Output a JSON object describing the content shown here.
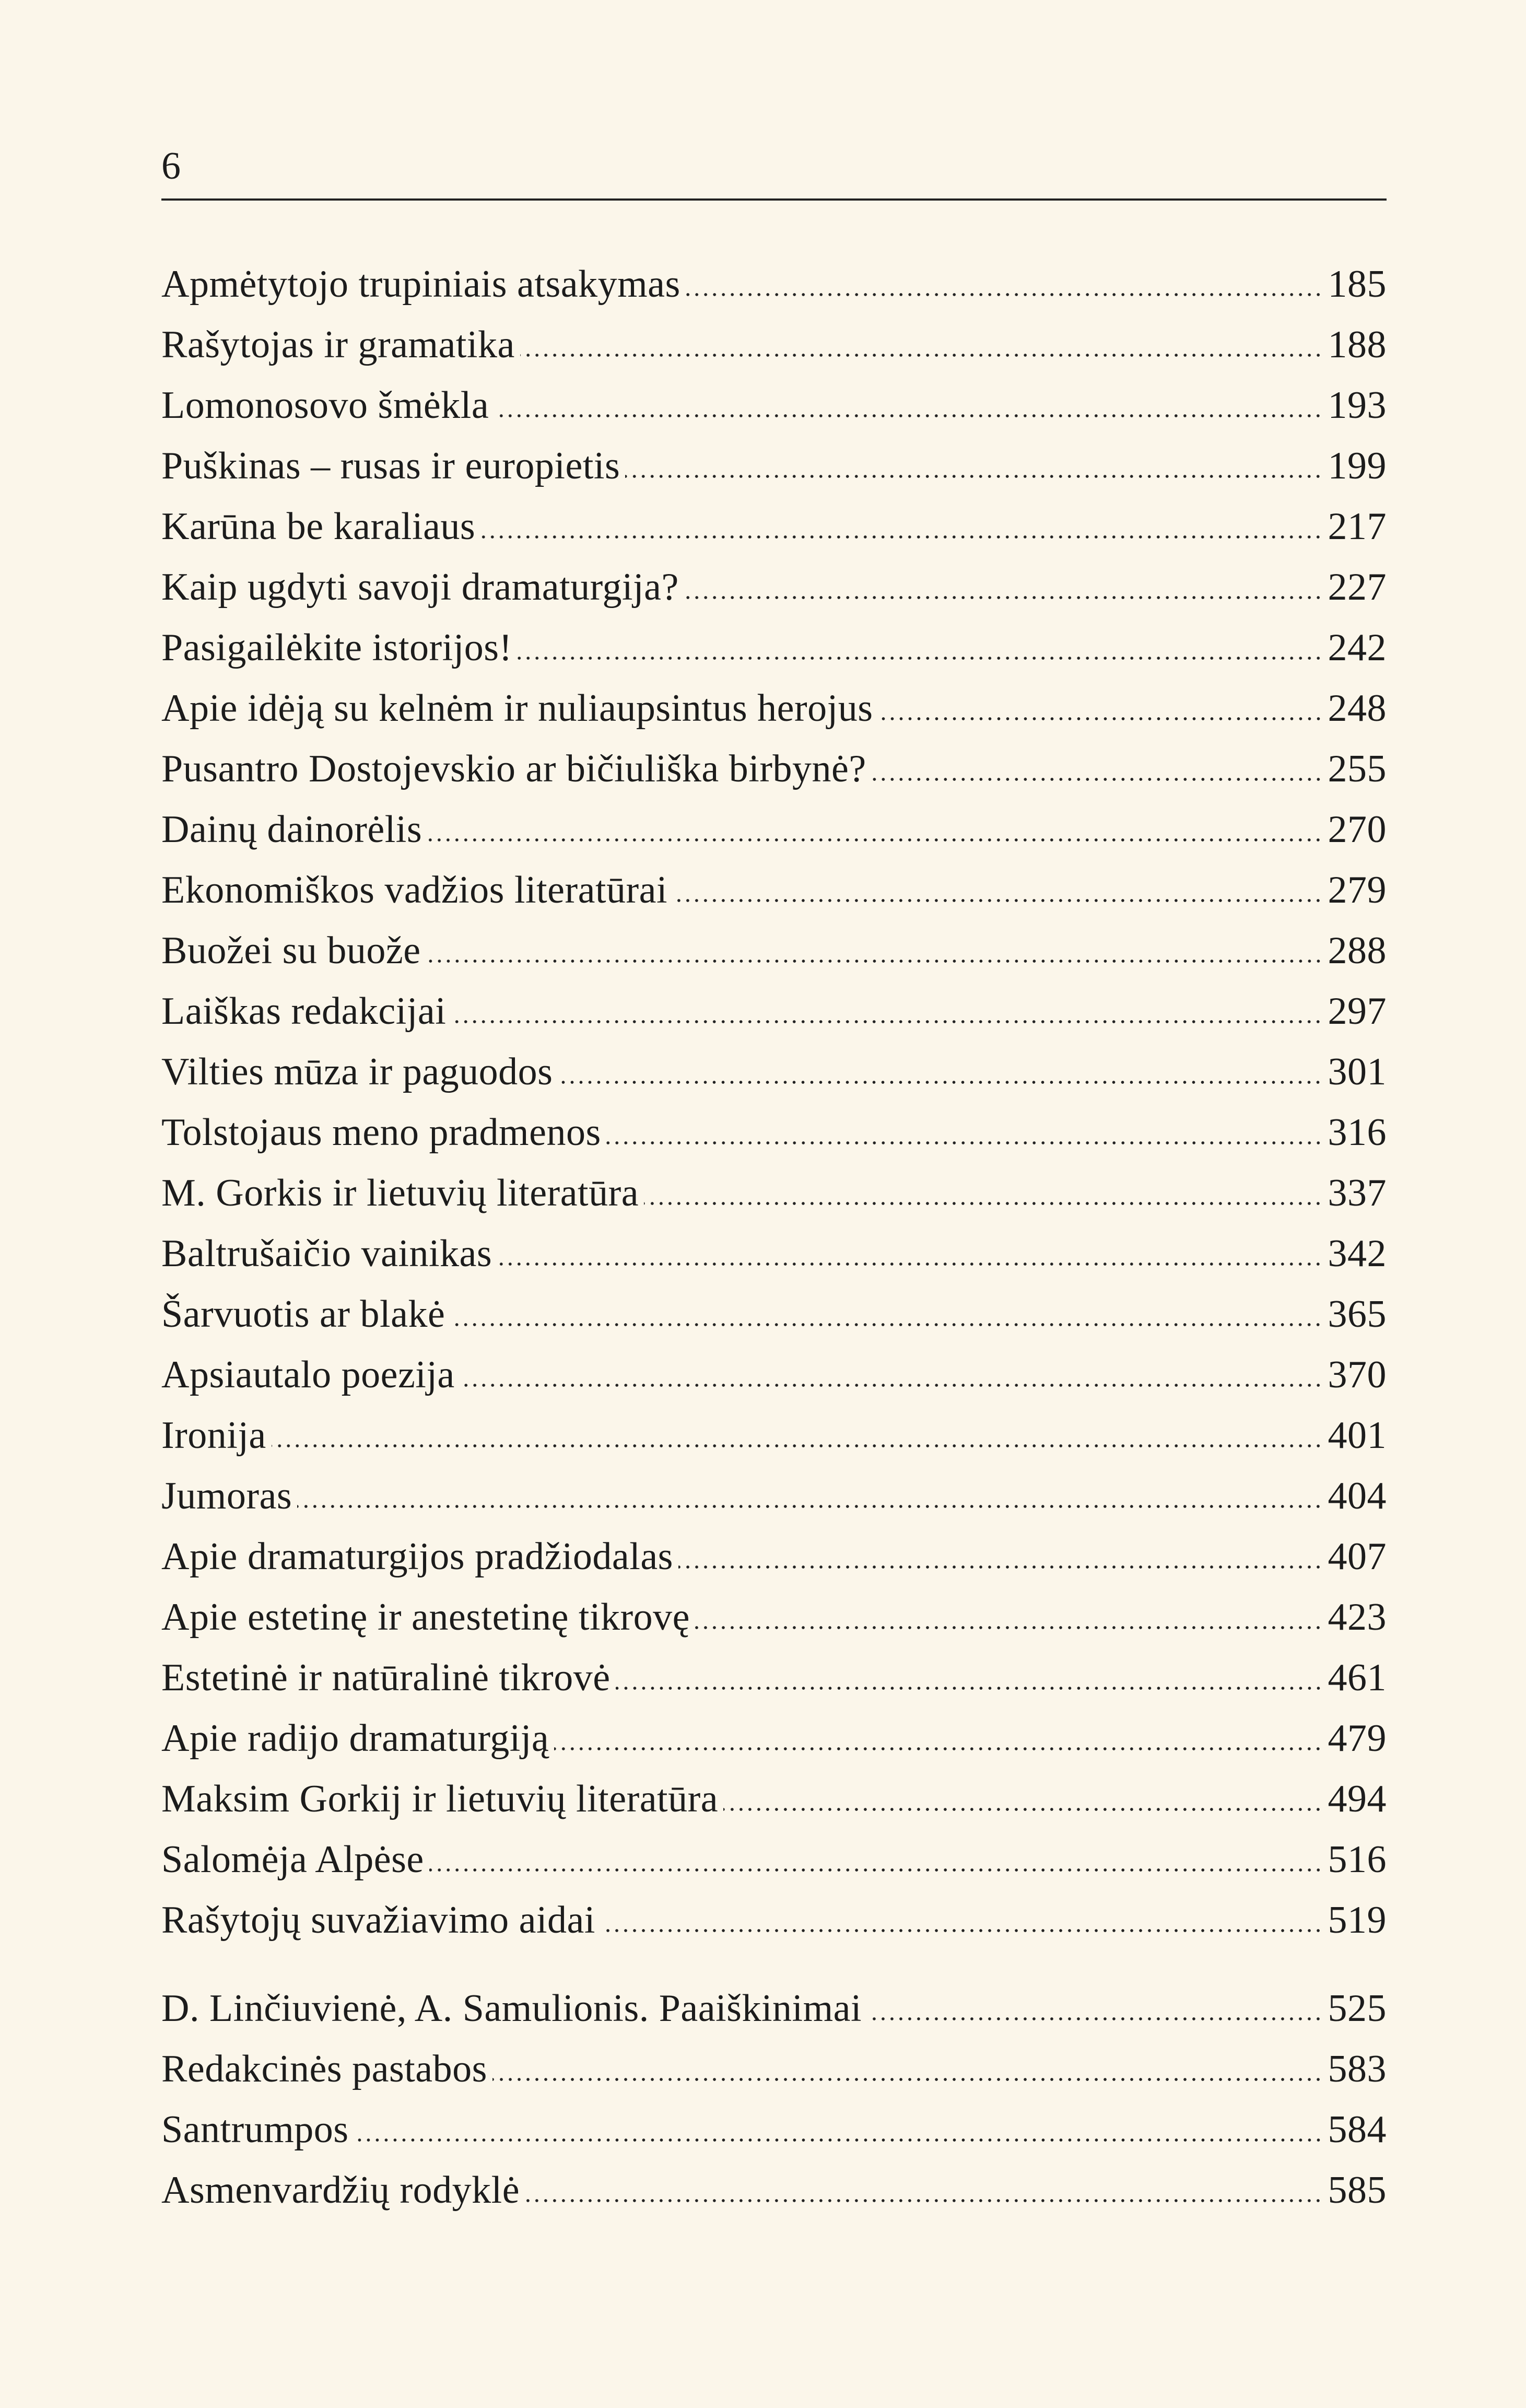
{
  "header": {
    "page_number": "6"
  },
  "toc": {
    "group1": [
      {
        "title": "Apmėtytojo trupiniais atsakymas",
        "page": "185"
      },
      {
        "title": "Rašytojas ir gramatika",
        "page": "188"
      },
      {
        "title": "Lomonosovo šmėkla",
        "page": "193"
      },
      {
        "title": "Puškinas – rusas ir europietis",
        "page": "199"
      },
      {
        "title": "Karūna be karaliaus",
        "page": "217"
      },
      {
        "title": "Kaip ugdyti savoji dramaturgija?",
        "page": "227"
      },
      {
        "title": "Pasigailėkite istorijos!",
        "page": "242"
      },
      {
        "title": "Apie idėją su kelnėm ir nuliaupsintus herojus",
        "page": "248"
      },
      {
        "title": "Pusantro Dostojevskio ar bičiuliška birbynė?",
        "page": "255"
      },
      {
        "title": "Dainų dainorėlis",
        "page": "270"
      },
      {
        "title": "Ekonomiškos vadžios literatūrai",
        "page": "279"
      },
      {
        "title": "Buožei su buože",
        "page": "288"
      },
      {
        "title": "Laiškas redakcijai",
        "page": "297"
      },
      {
        "title": "Vilties mūza ir paguodos",
        "page": "301"
      },
      {
        "title": "Tolstojaus meno pradmenos",
        "page": "316"
      },
      {
        "title": "M. Gorkis ir lietuvių literatūra",
        "page": "337"
      },
      {
        "title": "Baltrušaičio vainikas",
        "page": "342"
      },
      {
        "title": "Šarvuotis ar blakė",
        "page": "365"
      },
      {
        "title": "Apsiautalo poezija",
        "page": "370"
      },
      {
        "title": "Ironija",
        "page": "401"
      },
      {
        "title": "Jumoras",
        "page": "404"
      },
      {
        "title": "Apie dramaturgijos pradžiodalas",
        "page": "407"
      },
      {
        "title": "Apie estetinę ir anestetinę tikrovę",
        "page": "423"
      },
      {
        "title": "Estetinė ir natūralinė tikrovė",
        "page": "461"
      },
      {
        "title": "Apie radijo dramaturgiją",
        "page": "479"
      },
      {
        "title": "Maksim Gorkij ir lietuvių literatūra",
        "page": "494"
      },
      {
        "title": "Salomėja Alpėse",
        "page": "516"
      },
      {
        "title": "Rašytojų suvažiavimo aidai",
        "page": "519"
      }
    ],
    "group2": [
      {
        "title": "D. Linčiuvienė, A. Samulionis. Paaiškinimai",
        "page": "525"
      },
      {
        "title": "Redakcinės pastabos",
        "page": "583"
      },
      {
        "title": "Santrumpos",
        "page": "584"
      },
      {
        "title": "Asmenvardžių rodyklė",
        "page": "585"
      }
    ]
  }
}
